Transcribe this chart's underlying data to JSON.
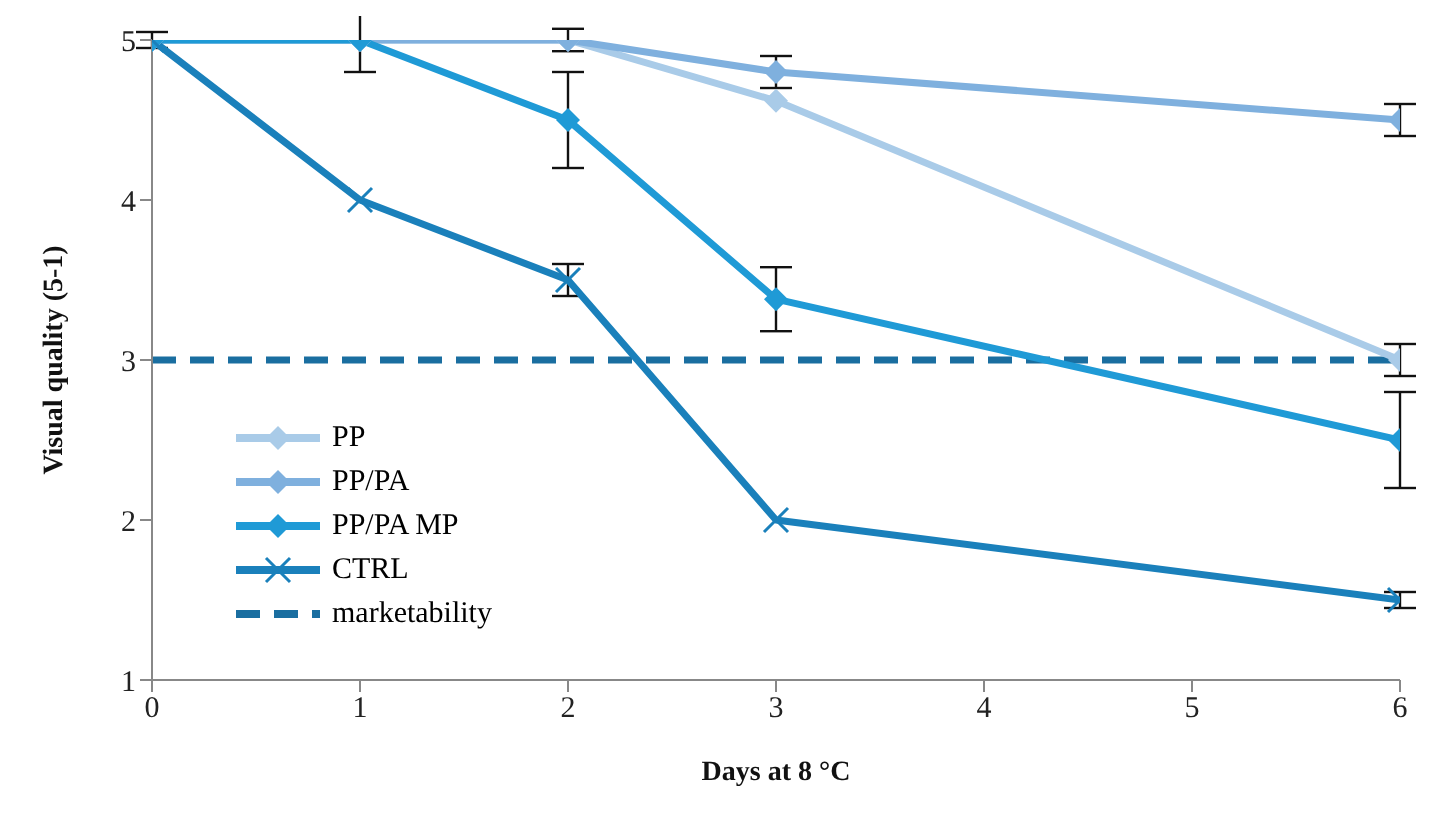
{
  "chart_data": {
    "type": "line",
    "xlabel": "Days at 8 °C",
    "ylabel": "Visual quality (5-1)",
    "x": [
      0,
      1,
      2,
      3,
      6
    ],
    "xlim": [
      0,
      6
    ],
    "xticks": [
      0,
      1,
      2,
      3,
      4,
      5,
      6
    ],
    "ylim": [
      1,
      5
    ],
    "yticks": [
      1,
      2,
      3,
      4,
      5
    ],
    "grid": false,
    "legend": "bottom left",
    "line_style": "solid",
    "series": [
      {
        "name": "PP",
        "color": "#a9cbe8",
        "marker": "diamond",
        "values": [
          5,
          5,
          5,
          4.62,
          3.0
        ],
        "errors": [
          null,
          null,
          0.07,
          null,
          0.1
        ]
      },
      {
        "name": "PP/PA",
        "color": "#7fb0de",
        "marker": "diamond",
        "values": [
          5,
          5,
          5,
          4.8,
          4.5
        ],
        "errors": [
          null,
          null,
          null,
          0.1,
          0.1
        ]
      },
      {
        "name": "PP/PA MP",
        "color": "#1f9ad6",
        "marker": "diamond",
        "values": [
          5,
          5,
          4.5,
          3.38,
          2.5
        ],
        "errors": [
          null,
          0.2,
          0.3,
          0.2,
          0.3
        ]
      },
      {
        "name": "CTRL",
        "color": "#1a80bb",
        "marker": "cross",
        "values": [
          5,
          4,
          3.5,
          2.0,
          1.5
        ],
        "errors": [
          0.05,
          null,
          0.1,
          null,
          0.05
        ]
      }
    ],
    "ref_lines": [
      {
        "axis": "y",
        "value": 3,
        "label": "marketability",
        "color": "#1a6ea0",
        "line_style": "dashed"
      }
    ]
  }
}
